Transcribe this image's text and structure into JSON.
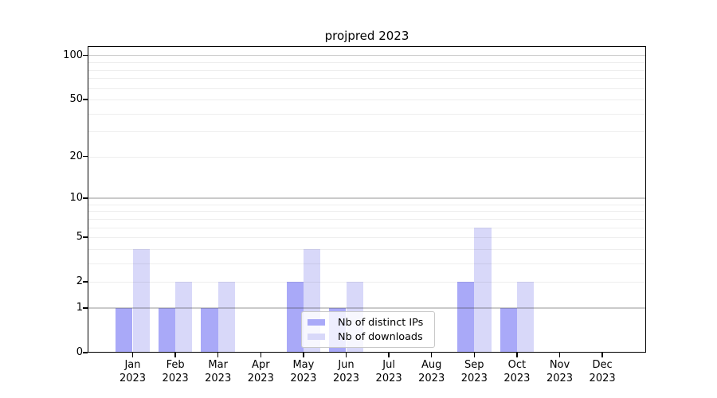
{
  "chart_data": {
    "type": "bar",
    "title": "projpred 2023",
    "categories": [
      "Jan 2023",
      "Feb 2023",
      "Mar 2023",
      "Apr 2023",
      "May 2023",
      "Jun 2023",
      "Jul 2023",
      "Aug 2023",
      "Sep 2023",
      "Oct 2023",
      "Nov 2023",
      "Dec 2023"
    ],
    "series": [
      {
        "name": "Nb of distinct IPs",
        "color": "#a9a9f8",
        "values": [
          1,
          1,
          1,
          0,
          2,
          1,
          0,
          0,
          2,
          1,
          0,
          0
        ]
      },
      {
        "name": "Nb of downloads",
        "color": "#d8d8f9",
        "values": [
          4,
          2,
          2,
          0,
          4,
          2,
          0,
          0,
          6,
          2,
          0,
          0
        ]
      }
    ],
    "xlabel": "",
    "ylabel": "",
    "yscale": "log1p",
    "ylim": [
      0,
      117
    ],
    "yticks": {
      "values": [
        0,
        1,
        2,
        5,
        10,
        20,
        50,
        100
      ],
      "labels": [
        "0",
        "1",
        "2",
        "5",
        "10",
        "20",
        "50",
        "100"
      ]
    },
    "grid": {
      "on": true,
      "major_values": [
        1,
        10,
        100
      ],
      "minor_values": [
        2,
        3,
        4,
        5,
        6,
        7,
        8,
        9,
        20,
        30,
        40,
        50,
        60,
        70,
        80,
        90
      ]
    },
    "legend_position": "inside lower center"
  },
  "colors": {
    "background": "#ffffff",
    "axis": "#000000",
    "grid_major": "#cacaca",
    "grid_minor": "#efefef",
    "series_ips": "#a9a9f8",
    "series_downloads": "#d8d8f9"
  }
}
